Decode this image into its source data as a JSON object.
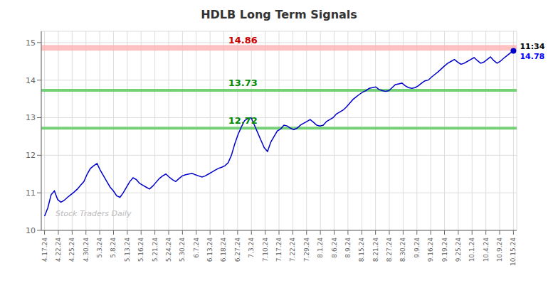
{
  "chart_data": {
    "type": "line",
    "title": "HDLB Long Term Signals",
    "x": [
      0,
      1,
      2,
      3,
      4,
      5,
      6,
      7,
      8,
      9,
      10,
      11,
      12,
      13,
      14,
      15,
      16,
      17,
      18,
      19,
      20,
      21,
      22,
      23,
      24,
      25,
      26,
      27,
      28,
      29,
      30,
      31,
      32,
      33,
      34,
      35,
      36,
      37,
      38,
      39,
      40,
      41,
      42,
      43,
      44,
      45,
      46,
      47,
      48,
      49,
      50,
      51,
      52,
      53,
      54,
      55,
      56,
      57,
      58,
      59,
      60,
      61,
      62,
      63,
      64,
      65,
      66,
      67,
      68,
      69,
      70,
      71,
      72,
      73,
      74,
      75,
      76,
      77,
      78,
      79,
      80,
      81,
      82,
      83,
      84,
      85,
      86,
      87,
      88,
      89,
      90,
      91,
      92,
      93,
      94,
      95,
      96,
      97,
      98,
      99,
      100,
      101,
      102,
      103,
      104,
      105,
      106,
      107,
      108,
      109,
      110,
      111,
      112,
      113,
      114,
      115,
      116,
      117,
      118,
      119,
      120,
      121,
      122,
      123,
      124,
      125,
      126,
      127,
      128,
      129,
      130,
      131,
      132,
      133,
      134,
      135,
      136,
      137,
      138,
      139,
      140,
      141,
      142,
      143
    ],
    "values": [
      10.38,
      10.6,
      10.95,
      11.05,
      10.82,
      10.75,
      10.8,
      10.88,
      10.95,
      11.02,
      11.1,
      11.2,
      11.3,
      11.5,
      11.65,
      11.72,
      11.78,
      11.6,
      11.45,
      11.3,
      11.15,
      11.05,
      10.92,
      10.88,
      11.0,
      11.15,
      11.3,
      11.4,
      11.35,
      11.25,
      11.2,
      11.15,
      11.1,
      11.18,
      11.28,
      11.38,
      11.45,
      11.5,
      11.42,
      11.35,
      11.3,
      11.38,
      11.45,
      11.48,
      11.5,
      11.52,
      11.48,
      11.45,
      11.42,
      11.45,
      11.5,
      11.55,
      11.6,
      11.65,
      11.68,
      11.72,
      11.8,
      12.0,
      12.3,
      12.55,
      12.75,
      12.92,
      12.98,
      13.0,
      12.8,
      12.6,
      12.4,
      12.2,
      12.1,
      12.35,
      12.5,
      12.65,
      12.7,
      12.8,
      12.78,
      12.72,
      12.68,
      12.72,
      12.8,
      12.85,
      12.9,
      12.95,
      12.88,
      12.8,
      12.78,
      12.8,
      12.9,
      12.95,
      13.0,
      13.1,
      13.15,
      13.2,
      13.28,
      13.38,
      13.48,
      13.55,
      13.62,
      13.68,
      13.72,
      13.78,
      13.8,
      13.82,
      13.75,
      13.72,
      13.7,
      13.72,
      13.8,
      13.88,
      13.9,
      13.92,
      13.85,
      13.8,
      13.78,
      13.8,
      13.85,
      13.92,
      13.98,
      14.0,
      14.08,
      14.15,
      14.22,
      14.3,
      14.38,
      14.45,
      14.5,
      14.55,
      14.48,
      14.42,
      14.45,
      14.5,
      14.55,
      14.6,
      14.52,
      14.45,
      14.48,
      14.55,
      14.62,
      14.52,
      14.45,
      14.5,
      14.58,
      14.65,
      14.72,
      14.78
    ],
    "color": "#0000cc",
    "xlim": [
      -1,
      144
    ],
    "xticks": [
      {
        "value": 0,
        "label": "4.17.24"
      },
      {
        "value": 4.205882352941176,
        "label": "4.22.24"
      },
      {
        "value": 8.411764705882353,
        "label": "4.25.24"
      },
      {
        "value": 12.617647058823529,
        "label": "4.30.24"
      },
      {
        "value": 16.823529411764707,
        "label": "5.3.24"
      },
      {
        "value": 21.029411764705884,
        "label": "5.8.24"
      },
      {
        "value": 25.235294117647058,
        "label": "5.13.24"
      },
      {
        "value": 29.441176470588236,
        "label": "5.16.24"
      },
      {
        "value": 33.64705882352941,
        "label": "5.21.24"
      },
      {
        "value": 37.85294117647059,
        "label": "5.24.24"
      },
      {
        "value": 42.05882352941177,
        "label": "5.30.24"
      },
      {
        "value": 46.26470588235294,
        "label": "6.7.24"
      },
      {
        "value": 50.470588235294116,
        "label": "6.13.24"
      },
      {
        "value": 54.6764705882353,
        "label": "6.18.24"
      },
      {
        "value": 58.88235294117647,
        "label": "6.27.24"
      },
      {
        "value": 63.088235294117645,
        "label": "7.3.24"
      },
      {
        "value": 67.29411764705883,
        "label": "7.10.24"
      },
      {
        "value": 71.5,
        "label": "7.17.24"
      },
      {
        "value": 75.70588235294117,
        "label": "7.22.24"
      },
      {
        "value": 79.91176470588235,
        "label": "7.29.24"
      },
      {
        "value": 84.11764705882354,
        "label": "8.1.24"
      },
      {
        "value": 88.32352941176471,
        "label": "8.6.24"
      },
      {
        "value": 92.52941176470588,
        "label": "8.9.24"
      },
      {
        "value": 96.73529411764706,
        "label": "8.15.24"
      },
      {
        "value": 100.94117647058823,
        "label": "8.21.24"
      },
      {
        "value": 105.1470588235294,
        "label": "8.27.24"
      },
      {
        "value": 109.3529411764706,
        "label": "8.30.24"
      },
      {
        "value": 113.55882352941177,
        "label": "9.9.24"
      },
      {
        "value": 117.76470588235294,
        "label": "9.16.24"
      },
      {
        "value": 121.97058823529412,
        "label": "9.19.24"
      },
      {
        "value": 126.17647058823529,
        "label": "9.25.24"
      },
      {
        "value": 130.38235294117646,
        "label": "10.1.24"
      },
      {
        "value": 134.58823529411765,
        "label": "10.4.24"
      },
      {
        "value": 138.7941176470588,
        "label": "10.9.24"
      },
      {
        "value": 143,
        "label": "10.15.24"
      }
    ],
    "ylim": [
      10.0,
      15.3
    ],
    "yticks": [
      10,
      11,
      12,
      13,
      14,
      15
    ],
    "grid": true,
    "reference_lines": [
      {
        "value": 14.86,
        "color": "#ffb3b3",
        "label_color": "#cc0000"
      },
      {
        "value": 13.73,
        "color": "#66cc66",
        "label_color": "#008800"
      },
      {
        "value": 12.72,
        "color": "#66cc66",
        "label_color": "#008800"
      }
    ],
    "last_point": {
      "time": "11:34",
      "price": 14.78,
      "time_color": "#000000",
      "price_color": "#0000ff",
      "marker": "circle"
    },
    "annotations": [
      {
        "text": "Stock Traders Daily",
        "color": "#bbbbbb"
      }
    ]
  }
}
